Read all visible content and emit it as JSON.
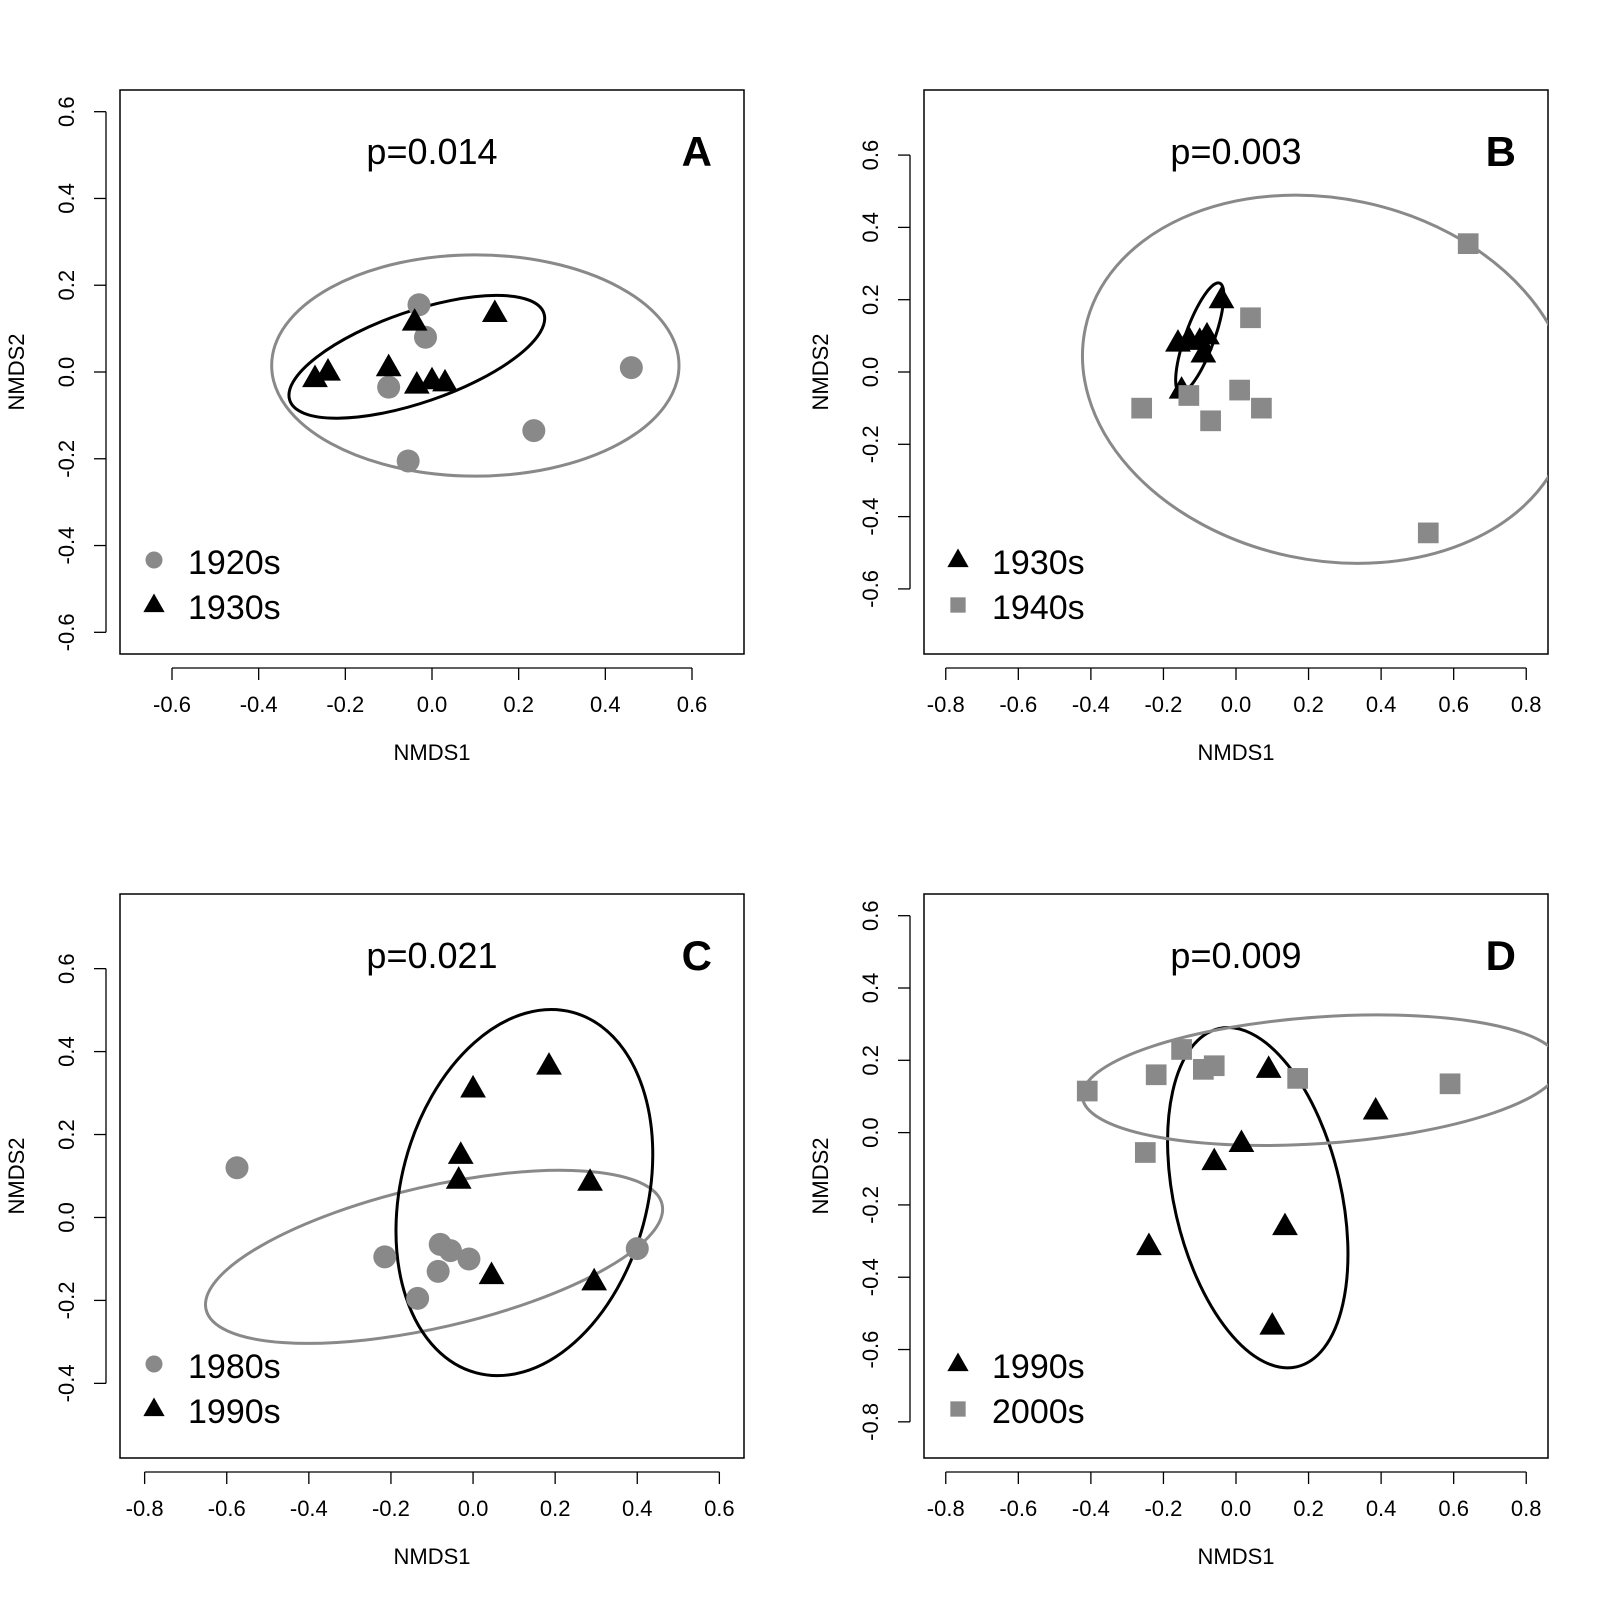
{
  "colors": {
    "gray": "#898989",
    "black": "#000000"
  },
  "chart_data": [
    {
      "type": "scatter",
      "panel": "A",
      "pvalue": "p=0.014",
      "xlabel": "NMDS1",
      "ylabel": "NMDS2",
      "xlim": [
        -0.72,
        0.72
      ],
      "ylim": [
        -0.65,
        0.65
      ],
      "xticks": [
        -0.6,
        -0.4,
        -0.2,
        0.0,
        0.2,
        0.4,
        0.6
      ],
      "xtick_labels": [
        "-0.6",
        "-0.4",
        "-0.2",
        "0.0",
        "0.2",
        "0.4",
        "0.6"
      ],
      "yticks": [
        -0.6,
        -0.4,
        -0.2,
        0.0,
        0.2,
        0.4,
        0.6
      ],
      "ytick_labels": [
        "-0.6",
        "-0.4",
        "-0.2",
        "0.0",
        "0.2",
        "0.4",
        "0.6"
      ],
      "legend_position": "bottom-left",
      "series": [
        {
          "name": "1920s",
          "marker": "circle",
          "color": "gray",
          "x": [
            -0.03,
            -0.015,
            -0.1,
            0.46,
            0.235,
            -0.055
          ],
          "y": [
            0.155,
            0.08,
            -0.035,
            0.01,
            -0.135,
            -0.205
          ],
          "ellipse": {
            "cx": 0.1,
            "cy": 0.015,
            "rx": 0.47,
            "ry": 0.255,
            "angle": 0
          }
        },
        {
          "name": "1930s",
          "marker": "triangle",
          "color": "black",
          "x": [
            -0.27,
            -0.24,
            -0.1,
            -0.04,
            -0.035,
            0.0,
            0.03,
            0.145
          ],
          "y": [
            -0.015,
            0.0,
            0.01,
            0.115,
            -0.03,
            -0.02,
            -0.025,
            0.135
          ],
          "ellipse": {
            "cx": -0.035,
            "cy": 0.035,
            "rx": 0.31,
            "ry": 0.105,
            "angle": 19
          }
        }
      ]
    },
    {
      "type": "scatter",
      "panel": "B",
      "pvalue": "p=0.003",
      "xlabel": "NMDS1",
      "ylabel": "NMDS2",
      "xlim": [
        -0.86,
        0.86
      ],
      "ylim": [
        -0.78,
        0.78
      ],
      "xticks": [
        -0.8,
        -0.6,
        -0.4,
        -0.2,
        0.0,
        0.2,
        0.4,
        0.6,
        0.8
      ],
      "xtick_labels": [
        "-0.8",
        "-0.6",
        "-0.4",
        "-0.2",
        "0.0",
        "0.2",
        "0.4",
        "0.6",
        "0.8"
      ],
      "yticks": [
        -0.6,
        -0.4,
        -0.2,
        0.0,
        0.2,
        0.4,
        0.6
      ],
      "ytick_labels": [
        "-0.6",
        "-0.4",
        "-0.2",
        "0.0",
        "0.2",
        "0.4",
        "0.6"
      ],
      "legend_position": "bottom-left",
      "series": [
        {
          "name": "1930s",
          "marker": "triangle",
          "color": "black",
          "x": [
            -0.04,
            -0.16,
            -0.13,
            -0.1,
            -0.08,
            -0.09,
            -0.15
          ],
          "y": [
            0.2,
            0.08,
            0.09,
            0.085,
            0.1,
            0.05,
            -0.05
          ],
          "ellipse": {
            "cx": -0.1,
            "cy": 0.095,
            "rx": 0.16,
            "ry": 0.04,
            "angle": 70
          }
        },
        {
          "name": "1940s",
          "marker": "square",
          "color": "gray",
          "x": [
            0.64,
            0.04,
            0.01,
            -0.13,
            -0.26,
            -0.07,
            0.07,
            0.53
          ],
          "y": [
            0.355,
            0.15,
            -0.05,
            -0.065,
            -0.1,
            -0.135,
            -0.1,
            -0.445
          ],
          "ellipse": {
            "cx": 0.25,
            "cy": -0.02,
            "rx": 0.68,
            "ry": 0.5,
            "angle": -12
          }
        }
      ]
    },
    {
      "type": "scatter",
      "panel": "C",
      "pvalue": "p=0.021",
      "xlabel": "NMDS1",
      "ylabel": "NMDS2",
      "xlim": [
        -0.86,
        0.66
      ],
      "ylim": [
        -0.58,
        0.78
      ],
      "xticks": [
        -0.8,
        -0.6,
        -0.4,
        -0.2,
        0.0,
        0.2,
        0.4,
        0.6
      ],
      "xtick_labels": [
        "-0.8",
        "-0.6",
        "-0.4",
        "-0.2",
        "0.0",
        "0.2",
        "0.4",
        "0.6"
      ],
      "yticks": [
        -0.4,
        -0.2,
        0.0,
        0.2,
        0.4,
        0.6
      ],
      "ytick_labels": [
        "-0.4",
        "-0.2",
        "0.0",
        "0.2",
        "0.4",
        "0.6"
      ],
      "legend_position": "bottom-left",
      "series": [
        {
          "name": "1980s",
          "marker": "circle",
          "color": "gray",
          "x": [
            -0.575,
            -0.215,
            -0.135,
            -0.08,
            -0.055,
            -0.085,
            -0.01,
            0.4
          ],
          "y": [
            0.12,
            -0.095,
            -0.195,
            -0.065,
            -0.08,
            -0.13,
            -0.1,
            -0.075
          ],
          "ellipse": {
            "cx": -0.095,
            "cy": -0.095,
            "rx": 0.57,
            "ry": 0.17,
            "angle": 13
          }
        },
        {
          "name": "1990s",
          "marker": "triangle",
          "color": "black",
          "x": [
            0.185,
            0.0,
            -0.03,
            -0.035,
            0.285,
            0.045,
            0.295
          ],
          "y": [
            0.365,
            0.31,
            0.15,
            0.09,
            0.085,
            -0.14,
            -0.155
          ],
          "ellipse": {
            "cx": 0.125,
            "cy": 0.06,
            "rx": 0.3,
            "ry": 0.45,
            "angle": -15
          }
        }
      ]
    },
    {
      "type": "scatter",
      "panel": "D",
      "pvalue": "p=0.009",
      "xlabel": "NMDS1",
      "ylabel": "NMDS2",
      "xlim": [
        -0.86,
        0.86
      ],
      "ylim": [
        -0.9,
        0.66
      ],
      "xticks": [
        -0.8,
        -0.6,
        -0.4,
        -0.2,
        0.0,
        0.2,
        0.4,
        0.6,
        0.8
      ],
      "xtick_labels": [
        "-0.8",
        "-0.6",
        "-0.4",
        "-0.2",
        "0.0",
        "0.2",
        "0.4",
        "0.6",
        "0.8"
      ],
      "yticks": [
        -0.8,
        -0.6,
        -0.4,
        -0.2,
        0.0,
        0.2,
        0.4,
        0.6
      ],
      "ytick_labels": [
        "-0.8",
        "-0.6",
        "-0.4",
        "-0.2",
        "0.0",
        "0.2",
        "0.4",
        "0.6"
      ],
      "legend_position": "bottom-left",
      "series": [
        {
          "name": "1990s",
          "marker": "triangle",
          "color": "black",
          "x": [
            0.09,
            0.385,
            0.015,
            -0.06,
            -0.24,
            0.135,
            0.1
          ],
          "y": [
            0.175,
            0.06,
            -0.03,
            -0.08,
            -0.315,
            -0.26,
            -0.535
          ],
          "ellipse": {
            "cx": 0.06,
            "cy": -0.18,
            "rx": 0.23,
            "ry": 0.48,
            "angle": 13
          }
        },
        {
          "name": "2000s",
          "marker": "square",
          "color": "gray",
          "x": [
            -0.41,
            -0.22,
            -0.15,
            -0.09,
            -0.06,
            0.17,
            0.59,
            -0.25
          ],
          "y": [
            0.115,
            0.16,
            0.23,
            0.175,
            0.185,
            0.15,
            0.135,
            -0.055
          ],
          "ellipse": {
            "cx": 0.235,
            "cy": 0.145,
            "rx": 0.66,
            "ry": 0.175,
            "angle": 4
          }
        }
      ]
    }
  ]
}
